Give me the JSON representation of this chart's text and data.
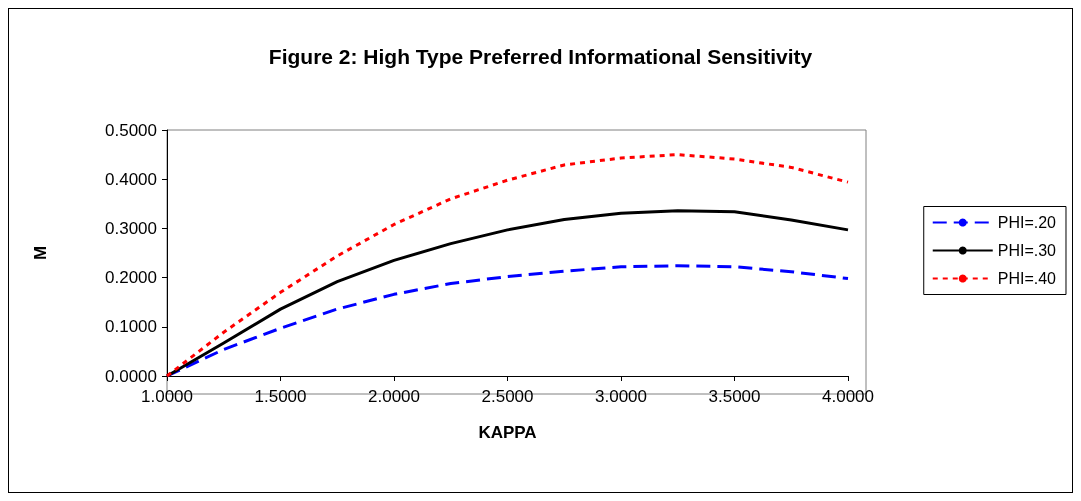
{
  "chart_data": {
    "type": "line",
    "title": "Figure 2: High Type Preferred Informational Sensitivity",
    "xlabel": "KAPPA",
    "ylabel": "M",
    "x": [
      1.0,
      1.25,
      1.5,
      1.75,
      2.0,
      2.25,
      2.5,
      2.75,
      3.0,
      3.25,
      3.5,
      3.75,
      4.0
    ],
    "series": [
      {
        "name": "PHI=.20",
        "color": "#0000ff",
        "line_style": "dashed",
        "values": [
          0,
          0.054,
          0.097,
          0.136,
          0.166,
          0.188,
          0.202,
          0.213,
          0.222,
          0.224,
          0.222,
          0.212,
          0.198
        ]
      },
      {
        "name": "PHI=.30",
        "color": "#000000",
        "line_style": "solid",
        "values": [
          0,
          0.067,
          0.136,
          0.192,
          0.235,
          0.269,
          0.297,
          0.318,
          0.331,
          0.336,
          0.334,
          0.317,
          0.297
        ]
      },
      {
        "name": "PHI=.40",
        "color": "#ff0000",
        "line_style": "dotted",
        "values": [
          0,
          0.089,
          0.17,
          0.244,
          0.308,
          0.36,
          0.398,
          0.429,
          0.443,
          0.45,
          0.441,
          0.424,
          0.394
        ]
      }
    ],
    "xlim": [
      1,
      4
    ],
    "xticks": [
      {
        "value": 1,
        "label": "1.0000"
      },
      {
        "value": 1.5,
        "label": "1.5000"
      },
      {
        "value": 2,
        "label": "2.0000"
      },
      {
        "value": 2.5,
        "label": "2.5000"
      },
      {
        "value": 3,
        "label": "3.0000"
      },
      {
        "value": 3.5,
        "label": "3.5000"
      },
      {
        "value": 4,
        "label": "4.0000"
      }
    ],
    "ylim": [
      0,
      0.5
    ],
    "yticks": [
      {
        "value": 0,
        "label": "0.0000"
      },
      {
        "value": 0.1,
        "label": "0.1000"
      },
      {
        "value": 0.2,
        "label": "0.2000"
      },
      {
        "value": 0.3,
        "label": "0.3000"
      },
      {
        "value": 0.4,
        "label": "0.4000"
      },
      {
        "value": 0.5,
        "label": "0.5000"
      }
    ],
    "grid": false,
    "legend": "right",
    "marker": "none"
  }
}
